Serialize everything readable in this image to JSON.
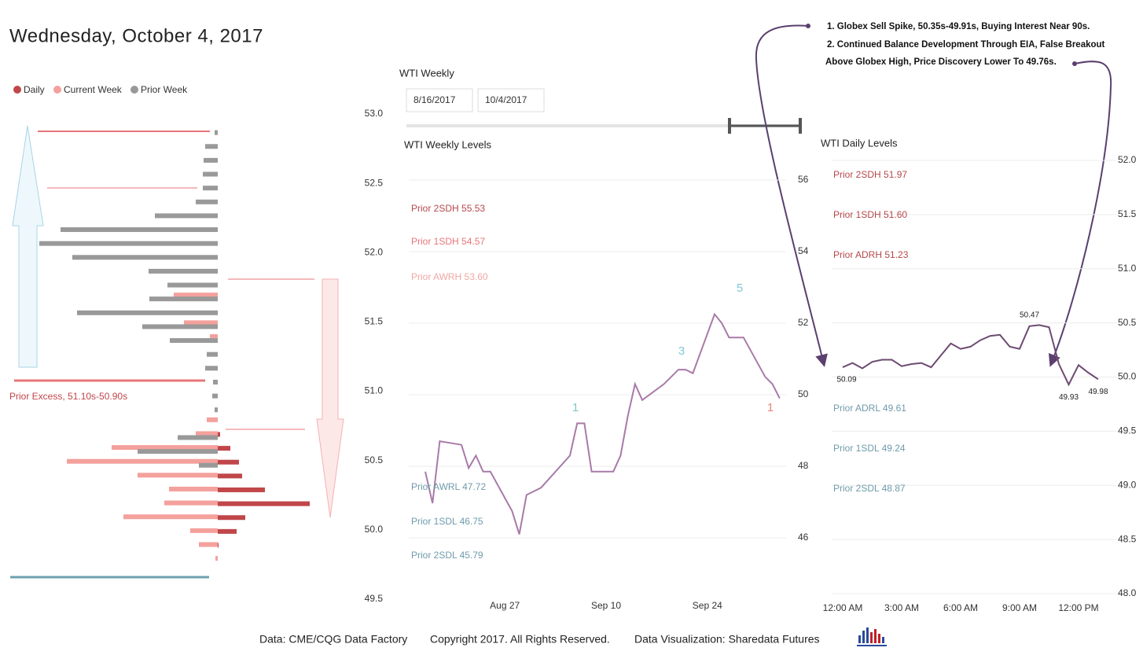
{
  "header": {
    "title": "Wednesday, October 4, 2017"
  },
  "notes": [
    "1. Globex Sell Spike, 50.35s-49.91s, Buying Interest Near 90s.",
    "2. Continued Balance Development Through EIA, False Breakout",
    "Above Globex High, Price Discovery Lower To 49.76s."
  ],
  "filters": {
    "title": "WTI Weekly",
    "start": "8/16/2017",
    "end": "10/4/2017"
  },
  "footer": [
    "Data: CME/CQG Data Factory",
    "Copyright 2017. All Rights Reserved.",
    "Data Visualization: Sharedata Futures"
  ],
  "chart_data": [
    {
      "type": "hbar",
      "annotation": "Prior Excess, 51.10s-50.90s",
      "categories": [
        52.9,
        52.8,
        52.7,
        52.6,
        52.5,
        52.4,
        52.3,
        52.2,
        52.1,
        52.0,
        51.9,
        51.8,
        51.7,
        51.6,
        51.5,
        51.4,
        51.3,
        51.2,
        51.1,
        51.0,
        50.9,
        50.8,
        50.7,
        50.6,
        50.5,
        50.4,
        50.3,
        50.2,
        50.1,
        50.0,
        49.9,
        49.8
      ],
      "series": [
        {
          "name": "Daily",
          "color": "#c0464a",
          "values": [
            null,
            null,
            null,
            null,
            null,
            null,
            null,
            null,
            null,
            null,
            null,
            null,
            null,
            null,
            null,
            null,
            null,
            null,
            null,
            null,
            null,
            null,
            3,
            16,
            27,
            31,
            60,
            117,
            35,
            24,
            1,
            null
          ]
        },
        {
          "name": "Current Week",
          "color": "#f4a09c",
          "values": [
            null,
            null,
            null,
            null,
            null,
            null,
            null,
            null,
            null,
            null,
            null,
            null,
            56,
            null,
            43,
            10,
            null,
            null,
            null,
            null,
            null,
            14,
            28,
            135,
            192,
            102,
            62,
            68,
            120,
            35,
            24,
            3
          ]
        },
        {
          "name": "Prior Week",
          "color": "#999999",
          "values": [
            4,
            16,
            18,
            19,
            19,
            28,
            80,
            200,
            227,
            185,
            88,
            64,
            87,
            179,
            96,
            61,
            14,
            16,
            6,
            7,
            4,
            null,
            51,
            102,
            24,
            null,
            null,
            null,
            null,
            null,
            null,
            null
          ]
        }
      ],
      "ylim": [
        49.5,
        53
      ],
      "yticks": [
        {
          "value": 53,
          "label": "53.0"
        },
        {
          "value": 52.5,
          "label": "52.5"
        },
        {
          "value": 52,
          "label": "52.0"
        },
        {
          "value": 51.5,
          "label": "51.5"
        },
        {
          "value": 51,
          "label": "51.0"
        },
        {
          "value": 50.5,
          "label": "50.5"
        },
        {
          "value": 50,
          "label": "50.0"
        },
        {
          "value": 49.5,
          "label": "49.5"
        }
      ]
    },
    {
      "type": "line",
      "title": "WTI Weekly Levels",
      "color": "#a87aa8",
      "x": [
        "Aug 16",
        "Aug 17",
        "Aug 18",
        "Aug 21",
        "Aug 22",
        "Aug 23",
        "Aug 24",
        "Aug 25",
        "Aug 28",
        "Aug 29",
        "Aug 30",
        "Aug 31",
        "Sep 1",
        "Sep 5",
        "Sep 6",
        "Sep 7",
        "Sep 8",
        "Sep 11",
        "Sep 12",
        "Sep 13",
        "Sep 14",
        "Sep 15",
        "Sep 18",
        "Sep 19",
        "Sep 20",
        "Sep 21",
        "Sep 22",
        "Sep 25",
        "Sep 26",
        "Sep 27",
        "Sep 28",
        "Sep 29",
        "Oct 2",
        "Oct 3",
        "Oct 4"
      ],
      "values": [
        47.85,
        46.97,
        48.7,
        48.6,
        47.95,
        48.3,
        47.85,
        47.85,
        46.75,
        46.1,
        47.2,
        47.3,
        47.4,
        48.3,
        49.2,
        49.2,
        47.85,
        47.85,
        48.3,
        49.4,
        50.3,
        49.85,
        50.3,
        50.5,
        50.7,
        50.7,
        50.6,
        52.25,
        52.0,
        51.6,
        51.6,
        51.6,
        50.5,
        50.3,
        49.9
      ],
      "xticks": [
        "Aug 27",
        "Sep 10",
        "Sep 24"
      ],
      "ylim": [
        45,
        57
      ],
      "yticks": [
        46,
        48,
        50,
        52,
        54,
        56
      ],
      "grid": true,
      "levels": [
        {
          "label": "Prior 2SDH 55.53",
          "color": "#b5484b"
        },
        {
          "label": "Prior 1SDH 54.57",
          "color": "#e8767a"
        },
        {
          "label": "Prior AWRH 53.60",
          "color": "#f0a8a4"
        },
        {
          "label": "Prior AWRL 47.72",
          "color": "#6f9bab"
        },
        {
          "label": "Prior 1SDL 46.75",
          "color": "#6f9bab"
        },
        {
          "label": "Prior 2SDL 45.79",
          "color": "#6f9bab"
        }
      ],
      "annotations": [
        {
          "text": "1",
          "color": "#7fc8c8"
        },
        {
          "text": "3",
          "color": "#7fc8d8"
        },
        {
          "text": "5",
          "color": "#7fc8d8"
        },
        {
          "text": "1",
          "color": "#e8857a"
        }
      ]
    },
    {
      "type": "line",
      "title": "WTI Daily Levels",
      "color": "#6e4a72",
      "x": [
        "12:00 AM",
        "12:30 AM",
        "1:00 AM",
        "1:30 AM",
        "2:00 AM",
        "2:30 AM",
        "3:00 AM",
        "3:30 AM",
        "4:00 AM",
        "4:30 AM",
        "5:00 AM",
        "5:30 AM",
        "6:00 AM",
        "6:30 AM",
        "7:00 AM",
        "7:30 AM",
        "8:00 AM",
        "8:30 AM",
        "9:00 AM",
        "9:30 AM",
        "10:00 AM",
        "10:30 AM",
        "11:00 AM",
        "11:30 AM",
        "12:00 PM",
        "12:30 PM",
        "1:00 PM"
      ],
      "values": [
        50.09,
        50.13,
        50.08,
        50.14,
        50.16,
        50.16,
        50.1,
        50.12,
        50.13,
        50.09,
        50.2,
        50.31,
        50.26,
        50.28,
        50.34,
        50.38,
        50.39,
        50.28,
        50.26,
        50.47,
        50.48,
        50.46,
        50.12,
        49.93,
        50.11,
        50.04,
        49.98
      ],
      "value_labels": [
        "50.09",
        null,
        null,
        null,
        null,
        null,
        null,
        null,
        null,
        null,
        null,
        null,
        null,
        null,
        null,
        null,
        null,
        null,
        null,
        "50.47",
        null,
        null,
        null,
        "49.93",
        null,
        null,
        "49.98"
      ],
      "xticks": [
        "12:00 AM",
        "3:00 AM",
        "6:00 AM",
        "9:00 AM",
        "12:00 PM"
      ],
      "ylim": [
        48,
        52
      ],
      "yticks": [
        {
          "value": 52,
          "label": "52.0"
        },
        {
          "value": 51.5,
          "label": "51.5"
        },
        {
          "value": 51,
          "label": "51.0"
        },
        {
          "value": 50.5,
          "label": "50.5"
        },
        {
          "value": 50,
          "label": "50.0"
        },
        {
          "value": 49.5,
          "label": "49.5"
        },
        {
          "value": 49,
          "label": "49.0"
        },
        {
          "value": 48.5,
          "label": "48.5"
        },
        {
          "value": 48,
          "label": "48.0"
        }
      ],
      "grid": true,
      "levels": [
        {
          "label": "Prior 2SDH 51.97",
          "color": "#b5484b"
        },
        {
          "label": "Prior 1SDH 51.60",
          "color": "#b5484b"
        },
        {
          "label": "Prior ADRH 51.23",
          "color": "#b5484b"
        },
        {
          "label": "Prior ADRL 49.61",
          "color": "#6f9bab"
        },
        {
          "label": "Prior 1SDL 49.24",
          "color": "#6f9bab"
        },
        {
          "label": "Prior 2SDL 48.87",
          "color": "#6f9bab"
        }
      ]
    }
  ]
}
